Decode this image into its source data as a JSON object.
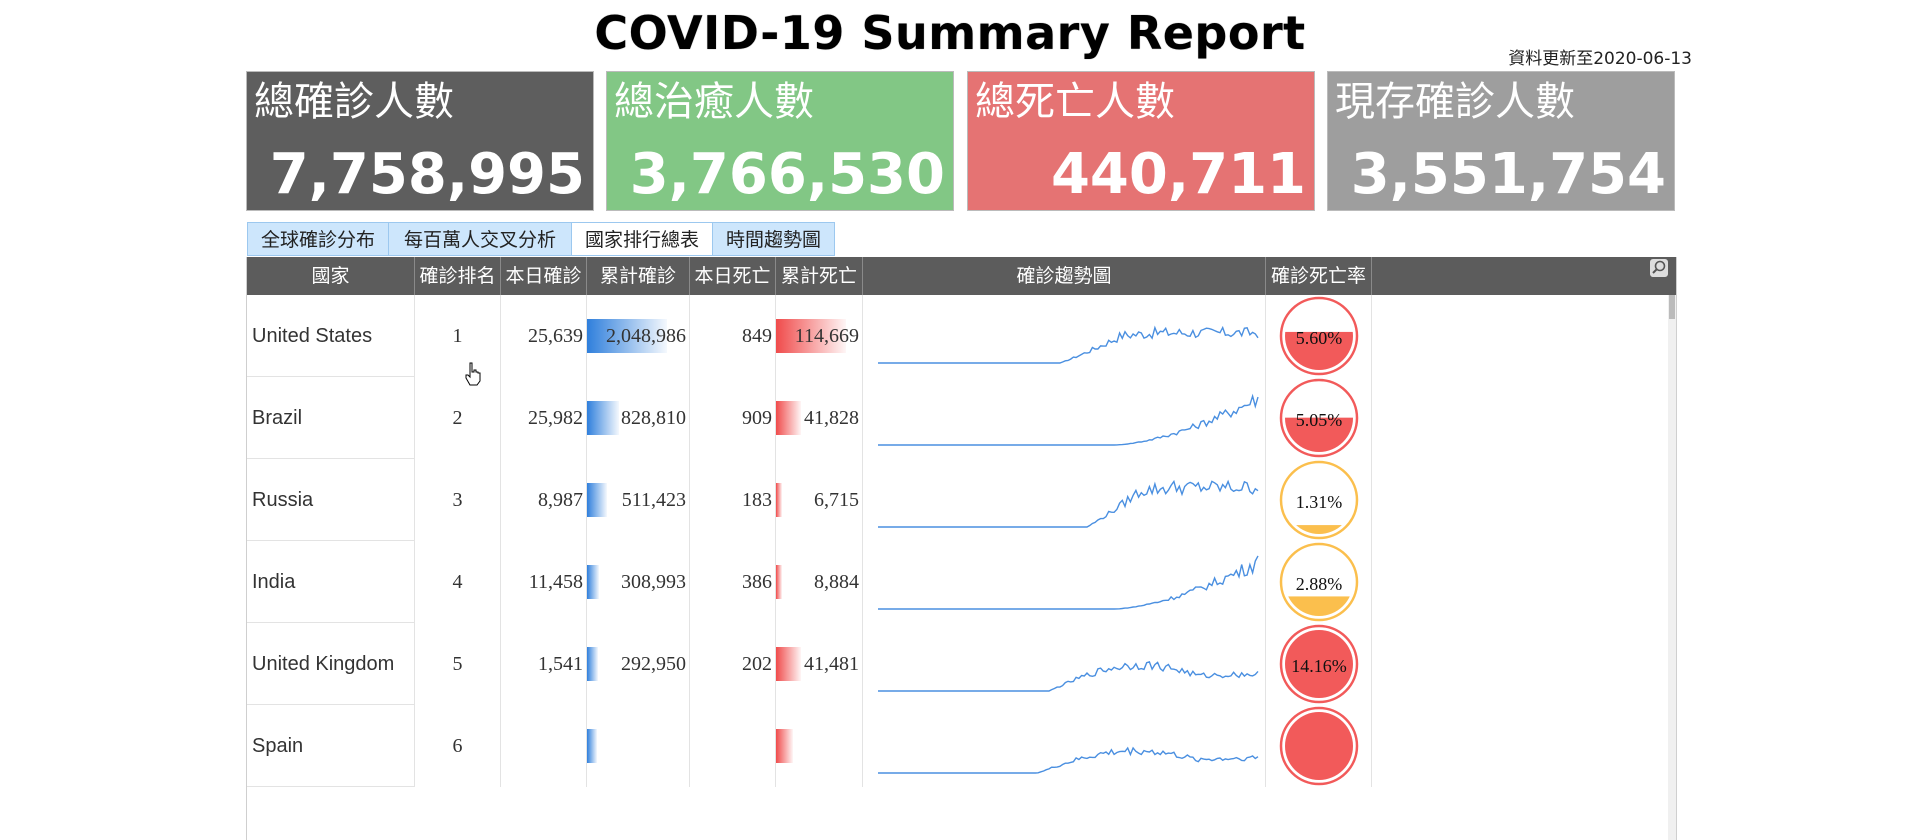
{
  "title": "COVID-19 Summary Report",
  "updated": "資料更新至2020-06-13",
  "cards": [
    {
      "label": "總確診人數",
      "value": "7,758,995",
      "color": "#5e5e5e"
    },
    {
      "label": "總治癒人數",
      "value": "3,766,530",
      "color": "#82c785"
    },
    {
      "label": "總死亡人數",
      "value": "440,711",
      "color": "#e57373"
    },
    {
      "label": "現存確診人數",
      "value": "3,551,754",
      "color": "#9e9e9e"
    }
  ],
  "tabs": [
    "全球確診分布",
    "每百萬人交叉分析",
    "國家排行總表",
    "時間趨勢圖"
  ],
  "active_tab": 2,
  "headers": [
    "國家",
    "確診排名",
    "本日確診",
    "累計確診",
    "本日死亡",
    "累計死亡",
    "確診趨勢圖",
    "確診死亡率"
  ],
  "colors": {
    "header": "#5c5c5c",
    "confirmed_bar": "#2f7fdc",
    "death_bar": "#f04b4b",
    "line": "#4a8fe0",
    "gauge_high": "#f25a5a",
    "gauge_low": "#fbbf4d"
  },
  "rows": [
    {
      "country": "United States",
      "rank": "1",
      "daily_cases": "25,639",
      "total_cases": "2,048,986",
      "daily_deaths": "849",
      "total_deaths": "114,669",
      "cfr": "5.60%",
      "cfr_value": 0.056,
      "case_bar": 1.0,
      "death_bar": 1.0
    },
    {
      "country": "Brazil",
      "rank": "2",
      "daily_cases": "25,982",
      "total_cases": "828,810",
      "daily_deaths": "909",
      "total_deaths": "41,828",
      "cfr": "5.05%",
      "cfr_value": 0.0505,
      "case_bar": 0.4,
      "death_bar": 0.36
    },
    {
      "country": "Russia",
      "rank": "3",
      "daily_cases": "8,987",
      "total_cases": "511,423",
      "daily_deaths": "183",
      "total_deaths": "6,715",
      "cfr": "1.31%",
      "cfr_value": 0.0131,
      "case_bar": 0.25,
      "death_bar": 0.06
    },
    {
      "country": "India",
      "rank": "4",
      "daily_cases": "11,458",
      "total_cases": "308,993",
      "daily_deaths": "386",
      "total_deaths": "8,884",
      "cfr": "2.88%",
      "cfr_value": 0.0288,
      "case_bar": 0.15,
      "death_bar": 0.08
    },
    {
      "country": "United Kingdom",
      "rank": "5",
      "daily_cases": "1,541",
      "total_cases": "292,950",
      "daily_deaths": "202",
      "total_deaths": "41,481",
      "cfr": "14.16%",
      "cfr_value": 0.1416,
      "case_bar": 0.14,
      "death_bar": 0.36
    },
    {
      "country": "Spain",
      "rank": "6",
      "daily_cases": "",
      "total_cases": "",
      "daily_deaths": "",
      "total_deaths": "",
      "cfr": "",
      "cfr_value": 0.1,
      "case_bar": 0.12,
      "death_bar": 0.24
    }
  ]
}
